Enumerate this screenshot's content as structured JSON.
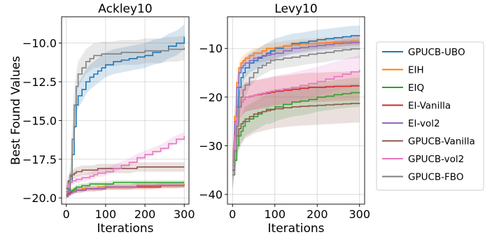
{
  "figure": {
    "ylabel": "Best Found Values",
    "xlabel": "Iterations"
  },
  "legend": {
    "placement": "right",
    "entries": [
      {
        "name": "GPUCB-UBO",
        "color": "#1f77b4"
      },
      {
        "name": "EIH",
        "color": "#ff7f0e"
      },
      {
        "name": "EIQ",
        "color": "#2ca02c"
      },
      {
        "name": "EI-Vanilla",
        "color": "#d62728"
      },
      {
        "name": "EI-vol2",
        "color": "#9467bd"
      },
      {
        "name": "GPUCB-Vanilla",
        "color": "#8c564b"
      },
      {
        "name": "GPUCB-vol2",
        "color": "#e377c2"
      },
      {
        "name": "GPUCB-FBO",
        "color": "#7f7f7f"
      }
    ]
  },
  "chart_data": [
    {
      "type": "line",
      "title": "Ackley10",
      "xlabel": "Iterations",
      "ylabel": "Best Found Values",
      "xlim": [
        -12,
        312
      ],
      "ylim": [
        -20.4,
        -8.3
      ],
      "xticks": [
        0,
        100,
        200,
        300
      ],
      "yticks": [
        -20.0,
        -17.5,
        -15.0,
        -12.5,
        -10.0
      ],
      "yticklabels": [
        "−20.0",
        "−17.5",
        "−15.0",
        "−12.5",
        "−10.0"
      ],
      "grid": true,
      "x": [
        0,
        5,
        10,
        15,
        20,
        25,
        30,
        40,
        50,
        60,
        70,
        80,
        90,
        100,
        120,
        140,
        160,
        180,
        200,
        220,
        240,
        260,
        280,
        300
      ],
      "series": [
        {
          "name": "GPUCB-UBO",
          "color": "#1f77b4",
          "values": [
            -19.6,
            -19.5,
            -19.0,
            -17.2,
            -15.4,
            -14.0,
            -13.4,
            -13.0,
            -12.5,
            -12.2,
            -12.0,
            -11.8,
            -11.6,
            -11.4,
            -11.2,
            -11.1,
            -11.0,
            -10.9,
            -10.8,
            -10.6,
            -10.5,
            -10.2,
            -10.0,
            -9.6
          ],
          "band": [
            0.2,
            0.3,
            0.5,
            0.8,
            0.9,
            0.9,
            0.8,
            0.8,
            0.8,
            0.8,
            0.8,
            0.8,
            0.8,
            0.8,
            0.8,
            0.8,
            0.8,
            0.8,
            0.8,
            0.8,
            0.8,
            0.8,
            0.8,
            0.8
          ]
        },
        {
          "name": "EIH",
          "color": "#ff7f0e",
          "values": [
            -19.8,
            -19.7,
            -19.6,
            -19.6,
            -19.5,
            -19.5,
            -19.5,
            -19.4,
            -19.4,
            -19.4,
            -19.4,
            -19.3,
            -19.3,
            -19.3,
            -19.3,
            -19.3,
            -19.3,
            -19.2,
            -19.2,
            -19.2,
            -19.2,
            -19.2,
            -19.2,
            -19.1
          ],
          "band": [
            0.2,
            0.2,
            0.2,
            0.2,
            0.2,
            0.2,
            0.2,
            0.2,
            0.2,
            0.2,
            0.2,
            0.2,
            0.2,
            0.2,
            0.2,
            0.2,
            0.2,
            0.2,
            0.2,
            0.2,
            0.2,
            0.2,
            0.2,
            0.2
          ]
        },
        {
          "name": "EIQ",
          "color": "#2ca02c",
          "values": [
            -19.9,
            -19.8,
            -19.6,
            -19.5,
            -19.4,
            -19.3,
            -19.3,
            -19.2,
            -19.2,
            -19.1,
            -19.1,
            -19.1,
            -19.1,
            -19.1,
            -19.0,
            -19.0,
            -19.0,
            -19.0,
            -19.0,
            -19.0,
            -19.0,
            -19.0,
            -19.0,
            -19.0
          ],
          "band": [
            0.15,
            0.15,
            0.15,
            0.15,
            0.15,
            0.15,
            0.15,
            0.15,
            0.15,
            0.15,
            0.15,
            0.15,
            0.15,
            0.15,
            0.15,
            0.15,
            0.15,
            0.15,
            0.15,
            0.15,
            0.15,
            0.15,
            0.15,
            0.15
          ]
        },
        {
          "name": "EI-Vanilla",
          "color": "#d62728",
          "values": [
            -19.8,
            -19.7,
            -19.6,
            -19.6,
            -19.6,
            -19.5,
            -19.5,
            -19.5,
            -19.4,
            -19.4,
            -19.4,
            -19.4,
            -19.4,
            -19.3,
            -19.3,
            -19.3,
            -19.3,
            -19.3,
            -19.3,
            -19.3,
            -19.2,
            -19.2,
            -19.2,
            -19.2
          ],
          "band": [
            0.15,
            0.15,
            0.15,
            0.15,
            0.15,
            0.15,
            0.15,
            0.15,
            0.15,
            0.15,
            0.15,
            0.15,
            0.15,
            0.15,
            0.15,
            0.15,
            0.15,
            0.15,
            0.15,
            0.15,
            0.15,
            0.15,
            0.15,
            0.15
          ]
        },
        {
          "name": "EI-vol2",
          "color": "#9467bd",
          "values": [
            -19.9,
            -19.8,
            -19.7,
            -19.6,
            -19.6,
            -19.5,
            -19.5,
            -19.5,
            -19.4,
            -19.4,
            -19.4,
            -19.4,
            -19.4,
            -19.3,
            -19.3,
            -19.3,
            -19.3,
            -19.2,
            -19.2,
            -19.2,
            -19.2,
            -19.2,
            -19.2,
            -19.2
          ],
          "band": [
            0.15,
            0.15,
            0.15,
            0.15,
            0.15,
            0.15,
            0.15,
            0.15,
            0.15,
            0.15,
            0.15,
            0.15,
            0.15,
            0.15,
            0.15,
            0.15,
            0.15,
            0.15,
            0.15,
            0.15,
            0.15,
            0.15,
            0.15,
            0.15
          ]
        },
        {
          "name": "GPUCB-Vanilla",
          "color": "#8c564b",
          "values": [
            -19.4,
            -18.9,
            -18.6,
            -18.5,
            -18.4,
            -18.3,
            -18.3,
            -18.2,
            -18.2,
            -18.2,
            -18.2,
            -18.1,
            -18.1,
            -18.1,
            -18.1,
            -18.1,
            -18.1,
            -18.0,
            -18.0,
            -18.0,
            -18.0,
            -18.0,
            -18.0,
            -18.0
          ],
          "band": [
            0.3,
            0.3,
            0.3,
            0.3,
            0.3,
            0.3,
            0.3,
            0.3,
            0.3,
            0.3,
            0.3,
            0.3,
            0.3,
            0.3,
            0.3,
            0.3,
            0.3,
            0.3,
            0.3,
            0.3,
            0.3,
            0.3,
            0.3,
            0.3
          ]
        },
        {
          "name": "GPUCB-vol2",
          "color": "#e377c2",
          "values": [
            -19.3,
            -19.1,
            -19.0,
            -18.9,
            -18.9,
            -18.8,
            -18.8,
            -18.7,
            -18.7,
            -18.6,
            -18.5,
            -18.4,
            -18.4,
            -18.3,
            -18.1,
            -17.9,
            -17.7,
            -17.4,
            -17.2,
            -17.0,
            -16.8,
            -16.5,
            -16.2,
            -16.0
          ],
          "band": [
            0.25,
            0.25,
            0.25,
            0.25,
            0.25,
            0.25,
            0.25,
            0.25,
            0.25,
            0.25,
            0.25,
            0.25,
            0.25,
            0.25,
            0.25,
            0.25,
            0.25,
            0.25,
            0.25,
            0.25,
            0.25,
            0.25,
            0.25,
            0.25
          ]
        },
        {
          "name": "GPUCB-FBO",
          "color": "#7f7f7f",
          "values": [
            -19.6,
            -19.4,
            -18.5,
            -16.2,
            -14.0,
            -12.8,
            -12.0,
            -11.6,
            -11.2,
            -11.0,
            -10.8,
            -10.8,
            -10.7,
            -10.7,
            -10.7,
            -10.6,
            -10.6,
            -10.6,
            -10.5,
            -10.5,
            -10.5,
            -10.4,
            -10.4,
            -10.3
          ],
          "band": [
            0.3,
            0.4,
            0.6,
            0.9,
            1.0,
            0.8,
            0.8,
            0.8,
            0.8,
            0.8,
            0.8,
            0.8,
            0.8,
            0.8,
            0.8,
            0.8,
            0.8,
            0.8,
            0.8,
            0.8,
            0.8,
            0.8,
            0.8,
            0.8
          ]
        }
      ]
    },
    {
      "type": "line",
      "title": "Levy10",
      "xlabel": "Iterations",
      "ylabel": "",
      "xlim": [
        -12,
        312
      ],
      "ylim": [
        -42,
        -3.5
      ],
      "xticks": [
        0,
        100,
        200,
        300
      ],
      "yticks": [
        -40,
        -30,
        -20,
        -10
      ],
      "yticklabels": [
        "−40",
        "−30",
        "−20",
        "−10"
      ],
      "grid": true,
      "x": [
        0,
        5,
        10,
        15,
        20,
        25,
        30,
        40,
        50,
        60,
        70,
        80,
        90,
        100,
        120,
        140,
        160,
        180,
        200,
        220,
        240,
        260,
        280,
        300
      ],
      "series": [
        {
          "name": "GPUCB-UBO",
          "color": "#1f77b4",
          "values": [
            -35,
            -28,
            -22,
            -18,
            -16,
            -15,
            -14,
            -13,
            -12.5,
            -12,
            -11.5,
            -11,
            -10.5,
            -10,
            -9.5,
            -9,
            -8.8,
            -8.5,
            -8.2,
            -8,
            -7.8,
            -7.6,
            -7.4,
            -7.3
          ],
          "band": [
            3,
            3,
            3,
            3,
            2.5,
            2,
            2,
            2,
            2,
            2,
            2,
            2,
            2,
            2,
            2,
            2,
            2,
            2,
            2,
            2,
            2,
            2,
            2,
            2
          ]
        },
        {
          "name": "EIH",
          "color": "#ff7f0e",
          "values": [
            -34,
            -24,
            -17,
            -14,
            -13,
            -12.5,
            -12,
            -11.5,
            -11,
            -11,
            -10.5,
            -10,
            -10,
            -9.8,
            -9.5,
            -9.3,
            -9.1,
            -9,
            -8.9,
            -8.8,
            -8.7,
            -8.6,
            -8.5,
            -8.5
          ],
          "band": [
            2,
            2,
            1.5,
            1,
            1,
            1,
            1,
            1,
            1,
            1,
            1,
            1,
            1,
            1,
            1,
            1,
            1,
            1,
            1,
            1,
            1,
            1,
            1,
            1
          ]
        },
        {
          "name": "EIQ",
          "color": "#2ca02c",
          "values": [
            -36,
            -33,
            -30,
            -28,
            -27,
            -26,
            -25,
            -24.5,
            -24,
            -23.5,
            -23,
            -22.5,
            -22.5,
            -22,
            -21.5,
            -21,
            -20.8,
            -20.5,
            -20,
            -19.8,
            -19.5,
            -19.3,
            -19.1,
            -19
          ],
          "band": [
            3,
            3,
            3,
            3,
            3,
            3,
            3,
            3,
            3,
            3,
            3,
            3,
            3,
            3,
            3,
            3,
            3,
            3,
            3,
            3,
            3,
            3,
            3,
            3
          ]
        },
        {
          "name": "EI-Vanilla",
          "color": "#d62728",
          "values": [
            -34,
            -28,
            -24,
            -22,
            -21,
            -20.5,
            -20,
            -19.8,
            -19.6,
            -19.5,
            -19.3,
            -19.2,
            -19,
            -18.8,
            -18.6,
            -18.4,
            -18.2,
            -18,
            -18,
            -17.9,
            -17.8,
            -17.8,
            -17.7,
            -17.7
          ],
          "band": [
            3,
            3,
            3,
            3,
            3,
            3,
            3,
            3,
            3,
            3,
            3,
            3,
            3,
            3,
            3,
            3,
            3,
            3,
            3,
            3,
            3,
            3,
            3,
            3
          ]
        },
        {
          "name": "EI-vol2",
          "color": "#9467bd",
          "values": [
            -35,
            -25,
            -18,
            -15,
            -14,
            -13.5,
            -13,
            -12.5,
            -12,
            -11.8,
            -11.6,
            -11.4,
            -11.2,
            -11,
            -10.5,
            -10,
            -9.8,
            -9.6,
            -9.4,
            -9.2,
            -9,
            -8.9,
            -8.8,
            -8.7
          ],
          "band": [
            2,
            2,
            1.5,
            1.2,
            1.2,
            1.2,
            1.2,
            1.2,
            1.2,
            1.2,
            1.2,
            1.2,
            1.2,
            1.2,
            1.2,
            1.2,
            1.2,
            1.2,
            1.2,
            1.2,
            1.2,
            1.2,
            1.2,
            1.2
          ]
        },
        {
          "name": "GPUCB-Vanilla",
          "color": "#8c564b",
          "values": [
            -35,
            -31,
            -28,
            -26.5,
            -25.5,
            -25,
            -24.5,
            -24,
            -23.5,
            -23.2,
            -23,
            -22.8,
            -22.6,
            -22.4,
            -22.2,
            -22,
            -21.9,
            -21.8,
            -21.7,
            -21.6,
            -21.5,
            -21.4,
            -21.3,
            -21.2
          ],
          "band": [
            4,
            4,
            4,
            4,
            4,
            4,
            4,
            4,
            4,
            4,
            4,
            4,
            4,
            4,
            4,
            4,
            4,
            4,
            4,
            4,
            4,
            4,
            4,
            4
          ]
        },
        {
          "name": "GPUCB-vol2",
          "color": "#e377c2",
          "values": [
            -34,
            -28,
            -24,
            -22,
            -21,
            -20.5,
            -20,
            -19.8,
            -19.6,
            -19.4,
            -19.2,
            -19,
            -18.8,
            -18.6,
            -18.3,
            -18,
            -17.6,
            -17.2,
            -16.8,
            -16.3,
            -15.8,
            -15.3,
            -14.8,
            -14.4
          ],
          "band": [
            3,
            3,
            3,
            3,
            3,
            3,
            3,
            3,
            3,
            3,
            3,
            3,
            3,
            3,
            3,
            3,
            3,
            3,
            3,
            3,
            3,
            3,
            3,
            3
          ]
        },
        {
          "name": "GPUCB-FBO",
          "color": "#7f7f7f",
          "values": [
            -36,
            -31,
            -26,
            -22,
            -20,
            -18.5,
            -17.5,
            -16,
            -15,
            -14,
            -13.5,
            -13,
            -12.5,
            -12.3,
            -12,
            -11.8,
            -11.5,
            -11.2,
            -11,
            -10.8,
            -10.5,
            -10.3,
            -10.1,
            -10
          ],
          "band": [
            3,
            3,
            2.5,
            2.5,
            2.5,
            2.5,
            2.5,
            2,
            2,
            2,
            2,
            2,
            2,
            2,
            2,
            2,
            2,
            2,
            2,
            2,
            2,
            2,
            2,
            2
          ]
        }
      ]
    }
  ]
}
